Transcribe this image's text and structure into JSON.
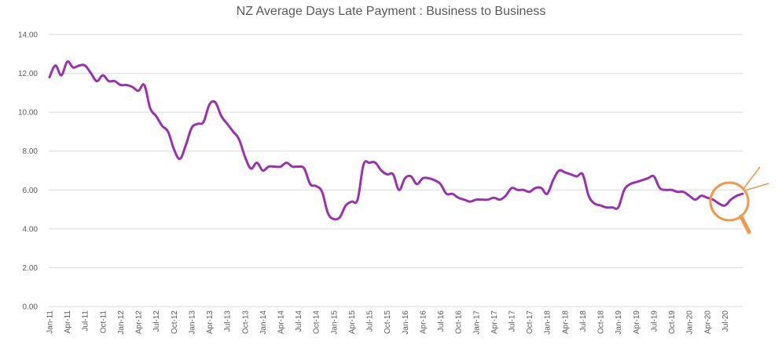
{
  "chart_data": {
    "type": "line",
    "title": "NZ Average Days Late Payment : Business to Business",
    "xlabel": "",
    "ylabel": "",
    "ylim": [
      0,
      14
    ],
    "yticks": [
      "0.00",
      "2.00",
      "4.00",
      "6.00",
      "8.00",
      "10.00",
      "12.00",
      "14.00"
    ],
    "grid": true,
    "legend": "none",
    "x_tick_labels": [
      "Jan-11",
      "Apr-11",
      "Jul-11",
      "Oct-11",
      "Jan-12",
      "Apr-12",
      "Jul-12",
      "Oct-12",
      "Jan-13",
      "Apr-13",
      "Jul-13",
      "Oct-13",
      "Jan-14",
      "Apr-14",
      "Jul-14",
      "Oct-14",
      "Jan-15",
      "Apr-15",
      "Jul-15",
      "Oct-15",
      "Jan-16",
      "Apr-16",
      "Jul-16",
      "Oct-16",
      "Jan-17",
      "Apr-17",
      "Jul-17",
      "Oct-17",
      "Jan-18",
      "Apr-18",
      "Jul-18",
      "Oct-18",
      "Jan-19",
      "Apr-19",
      "Jul-19",
      "Oct-19",
      "Jan-20",
      "Apr-20",
      "Jul-20"
    ],
    "line_color": "#9b30b3",
    "highlight_color": "#f79646",
    "series": [
      {
        "values": [
          11.8,
          12.4,
          11.9,
          12.6,
          12.3,
          12.4,
          12.4,
          12.0,
          11.6,
          11.9,
          11.6,
          11.6,
          11.4,
          11.4,
          11.3,
          11.1,
          11.4,
          10.2,
          9.8,
          9.3,
          9.0,
          8.1,
          7.6,
          8.3,
          9.2,
          9.4,
          9.5,
          10.4,
          10.5,
          9.8,
          9.4,
          9.0,
          8.6,
          7.7,
          7.1,
          7.4,
          7.0,
          7.2,
          7.2,
          7.2,
          7.4,
          7.2,
          7.2,
          7.1,
          6.3,
          6.2,
          5.9,
          4.8,
          4.5,
          4.6,
          5.2,
          5.4,
          5.5,
          7.3,
          7.4,
          7.4,
          7.0,
          6.8,
          6.8,
          6.0,
          6.6,
          6.7,
          6.3,
          6.6,
          6.6,
          6.5,
          6.3,
          5.8,
          5.8,
          5.6,
          5.5,
          5.4,
          5.5,
          5.5,
          5.5,
          5.6,
          5.5,
          5.7,
          6.1,
          6.0,
          6.0,
          5.9,
          6.1,
          6.1,
          5.8,
          6.5,
          7.0,
          6.9,
          6.8,
          6.7,
          6.8,
          5.7,
          5.3,
          5.2,
          5.1,
          5.1,
          5.1,
          6.0,
          6.3,
          6.4,
          6.5,
          6.6,
          6.7,
          6.1,
          6.0,
          6.0,
          5.9,
          5.9,
          5.7,
          5.5,
          5.7,
          5.6,
          5.5,
          5.3,
          5.2,
          5.5,
          5.7,
          5.8
        ]
      }
    ]
  }
}
